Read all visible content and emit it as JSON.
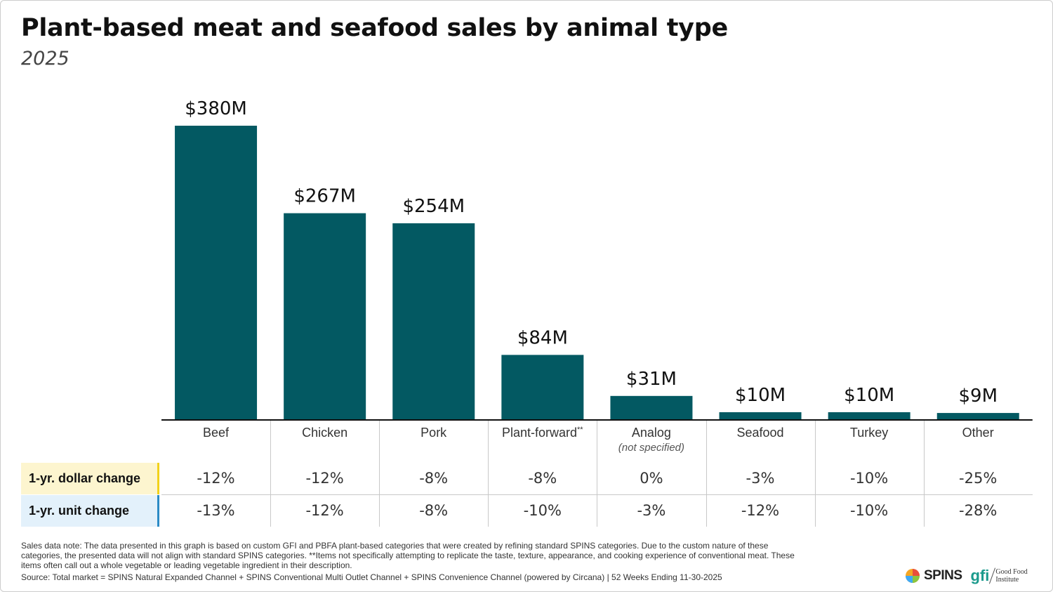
{
  "chart_data": {
    "type": "bar",
    "title": "Plant-based meat and seafood sales by animal type",
    "subtitle": "2025",
    "categories": [
      "Beef",
      "Chicken",
      "Pork",
      "Plant-forward",
      "Analog",
      "Seafood",
      "Turkey",
      "Other"
    ],
    "category_marks": [
      "",
      "",
      "",
      "**",
      "",
      "",
      "",
      ""
    ],
    "category_sublabels": [
      "",
      "",
      "",
      "",
      "(not specified)",
      "",
      "",
      ""
    ],
    "values": [
      380,
      267,
      254,
      84,
      31,
      10,
      10,
      9
    ],
    "unit": "$M",
    "data_labels": [
      "$380M",
      "$267M",
      "$254M",
      "$84M",
      "$31M",
      "$10M",
      "$10M",
      "$9M"
    ],
    "ylim": [
      0,
      380
    ],
    "grid": false,
    "bar_color": "#035962",
    "table": {
      "rows": [
        {
          "label": "1-yr. dollar change",
          "bg": "#fdf5cf",
          "accent": "#f2d21b",
          "values": [
            "-12%",
            "-12%",
            "-8%",
            "-8%",
            "0%",
            "-3%",
            "-10%",
            "-25%"
          ]
        },
        {
          "label": "1-yr. unit change",
          "bg": "#e3f1fb",
          "accent": "#2b8bc6",
          "values": [
            "-13%",
            "-12%",
            "-8%",
            "-10%",
            "-3%",
            "-12%",
            "-10%",
            "-28%"
          ]
        }
      ]
    }
  },
  "footer": {
    "note": "Sales data note: The data presented in this graph is based on custom GFI and PBFA plant-based categories that were created by refining standard SPINS categories. Due to the custom nature of these categories, the presented data will not align with standard SPINS categories. **Items not specifically attempting to replicate the taste, texture, appearance, and cooking experience of conventional meat. These items often call out a whole vegetable or leading vegetable ingredient in their description.",
    "source": "Source: Total market = SPINS Natural Expanded Channel + SPINS Conventional Multi Outlet Channel + SPINS Convenience Channel (powered by Circana) | 52 Weeks Ending 11-30-2025",
    "logos": {
      "spins": "SPINS",
      "gfi": "gfi",
      "gfi_name_1": "Good Food",
      "gfi_name_2": "Institute"
    }
  }
}
